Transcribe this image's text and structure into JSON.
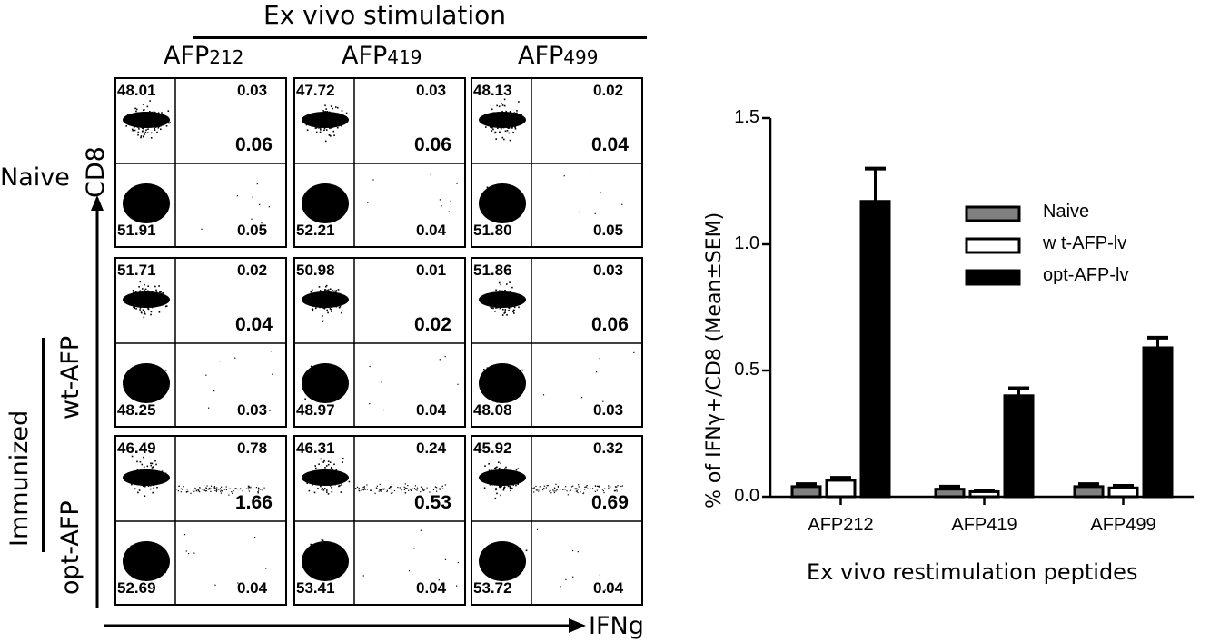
{
  "left_panel": {
    "header": "Ex vivo stimulation",
    "columns": [
      {
        "name": "AFP",
        "sub": "212"
      },
      {
        "name": "AFP",
        "sub": "419"
      },
      {
        "name": "AFP",
        "sub": "499"
      }
    ],
    "row_labels": {
      "naive": "Naive",
      "immunized": "Immunized",
      "wt": "wt-AFP",
      "opt": "opt-AFP"
    },
    "y_axis_label": "CD8",
    "x_axis_label": "IFNg",
    "grid": [
      [
        {
          "ul": "48.01",
          "ur": "0.03",
          "mid": "0.06",
          "ll": "51.91",
          "lr": "0.05",
          "tail": false
        },
        {
          "ul": "47.72",
          "ur": "0.03",
          "mid": "0.06",
          "ll": "52.21",
          "lr": "0.04",
          "tail": false
        },
        {
          "ul": "48.13",
          "ur": "0.02",
          "mid": "0.04",
          "ll": "51.80",
          "lr": "0.05",
          "tail": false
        }
      ],
      [
        {
          "ul": "51.71",
          "ur": "0.02",
          "mid": "0.04",
          "ll": "48.25",
          "lr": "0.03",
          "tail": false
        },
        {
          "ul": "50.98",
          "ur": "0.01",
          "mid": "0.02",
          "ll": "48.97",
          "lr": "0.04",
          "tail": false
        },
        {
          "ul": "51.86",
          "ur": "0.03",
          "mid": "0.06",
          "ll": "48.08",
          "lr": "0.03",
          "tail": false
        }
      ],
      [
        {
          "ul": "46.49",
          "ur": "0.78",
          "mid": "1.66",
          "ll": "52.69",
          "lr": "0.04",
          "tail": true
        },
        {
          "ul": "46.31",
          "ur": "0.24",
          "mid": "0.53",
          "ll": "53.41",
          "lr": "0.04",
          "tail": true
        },
        {
          "ul": "45.92",
          "ur": "0.32",
          "mid": "0.69",
          "ll": "53.72",
          "lr": "0.04",
          "tail": true
        }
      ]
    ]
  },
  "chart_data": {
    "type": "bar",
    "categories": [
      "AFP212",
      "AFP419",
      "AFP499"
    ],
    "series": [
      {
        "name": "Naive",
        "values": [
          0.04,
          0.03,
          0.04
        ],
        "errors": [
          0.01,
          0.01,
          0.01
        ],
        "fill": "#808080"
      },
      {
        "name": "w t-AFP-lv",
        "values": [
          0.065,
          0.02,
          0.035
        ],
        "errors": [
          0.01,
          0.005,
          0.008
        ],
        "fill": "#ffffff"
      },
      {
        "name": "opt-AFP-lv",
        "values": [
          1.17,
          0.4,
          0.59
        ],
        "errors": [
          0.13,
          0.03,
          0.04
        ],
        "fill": "#000000"
      }
    ],
    "xlabel": "Ex vivo restimulation peptides",
    "ylabel": "% of IFNγ+/CD8 (Mean±SEM)",
    "ylim": [
      0,
      1.5
    ],
    "yticks": [
      "0.0",
      "0.5",
      "1.0",
      "1.5"
    ],
    "legend_position": "right"
  }
}
